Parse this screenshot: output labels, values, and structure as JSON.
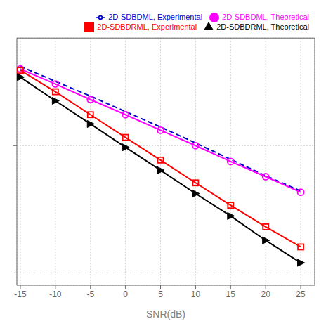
{
  "chart_data": {
    "type": "line",
    "x": [
      -15,
      -10,
      -5,
      0,
      5,
      10,
      15,
      20,
      25
    ],
    "series": [
      {
        "name": "2D-SDBDML, Experimental",
        "color": "#0000CD",
        "values": [
          0.42,
          0.32,
          0.245,
          0.185,
          0.14,
          0.105,
          0.078,
          0.058,
          0.044
        ],
        "marker": "none",
        "line_style": "dashed"
      },
      {
        "name": "2D-SDBDML, Theoretical",
        "color": "#FF00FF",
        "values": [
          0.4,
          0.305,
          0.23,
          0.175,
          0.132,
          0.1,
          0.075,
          0.057,
          0.043
        ],
        "marker": "circle",
        "line_style": "solid"
      },
      {
        "name": "2D-SDBDRML, Experimental",
        "color": "#FF0000",
        "values": [
          0.39,
          0.265,
          0.175,
          0.116,
          0.077,
          0.051,
          0.034,
          0.023,
          0.016
        ],
        "marker": "square",
        "line_style": "solid"
      },
      {
        "name": "2D-SDBDRML, Theoretical",
        "color": "#000000",
        "values": [
          0.345,
          0.225,
          0.148,
          0.097,
          0.064,
          0.042,
          0.028,
          0.018,
          0.012
        ],
        "marker": "triangle-right",
        "line_style": "solid"
      }
    ],
    "xlabel": "SNR(dB)",
    "xlim": [
      -15.5,
      27
    ],
    "xticks": [
      -15,
      -10,
      -5,
      0,
      5,
      10,
      15,
      20,
      25
    ],
    "ylim": [
      0.008,
      0.7
    ],
    "yticks": [
      0.01,
      0.1
    ],
    "log": "y",
    "grid": true,
    "legend": "upper right",
    "tick_labels": "x"
  }
}
